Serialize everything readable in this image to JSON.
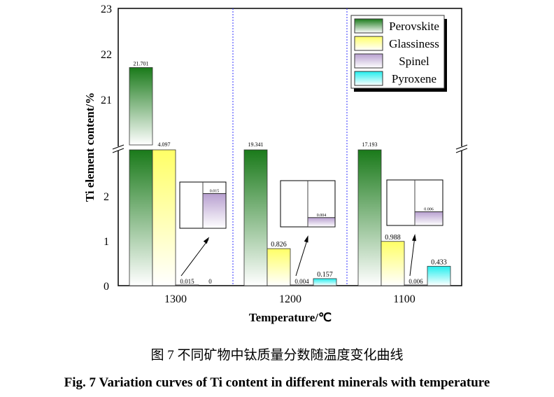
{
  "chart_data": {
    "type": "bar",
    "title": "",
    "xlabel": "Temperature/℃",
    "ylabel": "Ti element content/%",
    "categories": [
      "1300",
      "1200",
      "1100"
    ],
    "y_axis_break": {
      "lower_range": [
        0,
        3.06
      ],
      "upper_range": [
        20,
        23
      ]
    },
    "lower_ticks": [
      "0",
      "1",
      "2"
    ],
    "upper_ticks": [
      "21",
      "22",
      "23"
    ],
    "legend_placement": "top-right",
    "series": [
      {
        "name": "Perovskite",
        "values": [
          21.701,
          19.341,
          17.193
        ],
        "labels": [
          "21.701",
          "19.341",
          "17.193"
        ],
        "color": "#1a7a1a"
      },
      {
        "name": "Glassiness",
        "values": [
          4.097,
          0.826,
          0.988
        ],
        "labels": [
          "4.097",
          "0.826",
          "0.988"
        ],
        "color": "#ffff66"
      },
      {
        "name": "Spinel",
        "values": [
          0.015,
          0.004,
          0.006
        ],
        "labels": [
          "0.015",
          "0.004",
          "0.006"
        ],
        "color": "#b8a0d0"
      },
      {
        "name": "Pyroxene",
        "values": [
          0,
          0.157,
          0.433
        ],
        "labels": [
          "0",
          "0.157",
          "0.433"
        ],
        "color": "#22eeee"
      }
    ],
    "inset_labels": [
      "0.015",
      "0.004",
      "0.006"
    ]
  },
  "caption_cn": "图 7  不同矿物中钛质量分数随温度变化曲线",
  "caption_en": "Fig. 7  Variation curves of Ti content in different minerals with temperature"
}
